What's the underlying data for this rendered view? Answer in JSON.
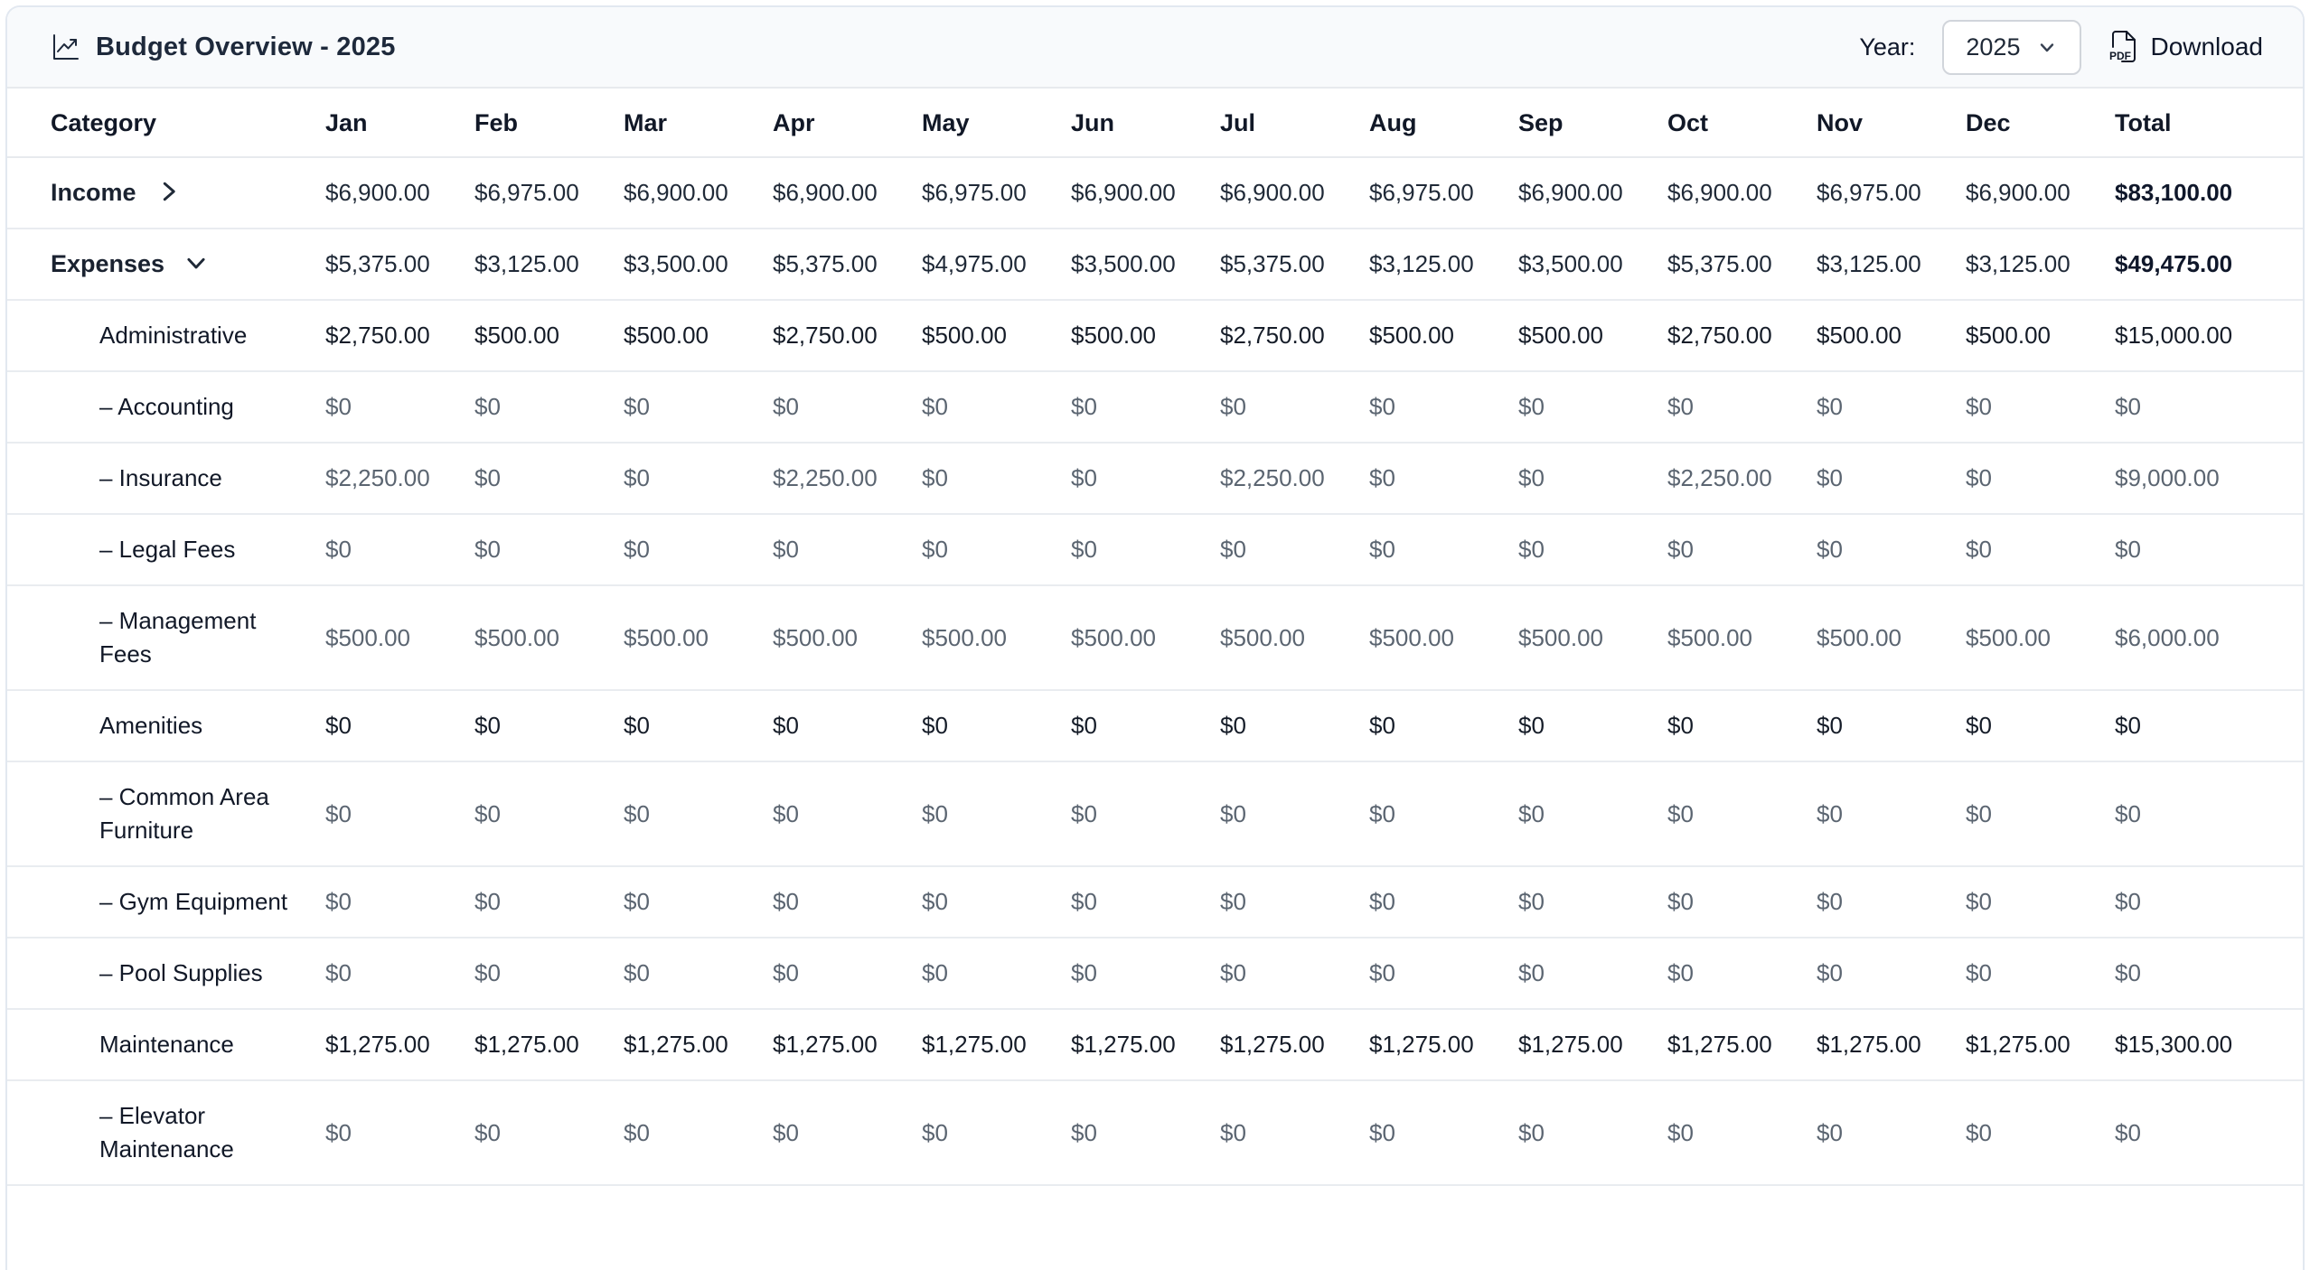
{
  "header": {
    "title": "Budget Overview - 2025",
    "title_icon": "chart-line-icon",
    "year_label": "Year:",
    "year_value": "2025",
    "year_chevron_icon": "chevron-down-icon",
    "download_label": "Download",
    "download_icon": "pdf-file-icon"
  },
  "colors": {
    "topbar_bg": "#f8fafc",
    "card_border": "#e2e8f0",
    "row_border": "#e9ecf0",
    "text_primary": "#111827",
    "text_muted": "#5b6571"
  },
  "table": {
    "columns": [
      "Category",
      "Jan",
      "Feb",
      "Mar",
      "Apr",
      "May",
      "Jun",
      "Jul",
      "Aug",
      "Sep",
      "Oct",
      "Nov",
      "Dec",
      "Total"
    ],
    "rows": [
      {
        "label": "Income",
        "level": 0,
        "chevron": "right",
        "values": [
          "$6,900.00",
          "$6,975.00",
          "$6,900.00",
          "$6,900.00",
          "$6,975.00",
          "$6,900.00",
          "$6,900.00",
          "$6,975.00",
          "$6,900.00",
          "$6,900.00",
          "$6,975.00",
          "$6,900.00",
          "$83,100.00"
        ]
      },
      {
        "label": "Expenses",
        "level": 0,
        "chevron": "down",
        "values": [
          "$5,375.00",
          "$3,125.00",
          "$3,500.00",
          "$5,375.00",
          "$4,975.00",
          "$3,500.00",
          "$5,375.00",
          "$3,125.00",
          "$3,500.00",
          "$5,375.00",
          "$3,125.00",
          "$3,125.00",
          "$49,475.00"
        ]
      },
      {
        "label": "Administrative",
        "level": 1,
        "chevron": null,
        "values": [
          "$2,750.00",
          "$500.00",
          "$500.00",
          "$2,750.00",
          "$500.00",
          "$500.00",
          "$2,750.00",
          "$500.00",
          "$500.00",
          "$2,750.00",
          "$500.00",
          "$500.00",
          "$15,000.00"
        ]
      },
      {
        "label": "– Accounting",
        "level": 2,
        "chevron": null,
        "values": [
          "$0",
          "$0",
          "$0",
          "$0",
          "$0",
          "$0",
          "$0",
          "$0",
          "$0",
          "$0",
          "$0",
          "$0",
          "$0"
        ]
      },
      {
        "label": "– Insurance",
        "level": 2,
        "chevron": null,
        "values": [
          "$2,250.00",
          "$0",
          "$0",
          "$2,250.00",
          "$0",
          "$0",
          "$2,250.00",
          "$0",
          "$0",
          "$2,250.00",
          "$0",
          "$0",
          "$9,000.00"
        ]
      },
      {
        "label": "– Legal Fees",
        "level": 2,
        "chevron": null,
        "values": [
          "$0",
          "$0",
          "$0",
          "$0",
          "$0",
          "$0",
          "$0",
          "$0",
          "$0",
          "$0",
          "$0",
          "$0",
          "$0"
        ]
      },
      {
        "label": "– Management Fees",
        "level": 2,
        "chevron": null,
        "values": [
          "$500.00",
          "$500.00",
          "$500.00",
          "$500.00",
          "$500.00",
          "$500.00",
          "$500.00",
          "$500.00",
          "$500.00",
          "$500.00",
          "$500.00",
          "$500.00",
          "$6,000.00"
        ]
      },
      {
        "label": "Amenities",
        "level": 1,
        "chevron": null,
        "values": [
          "$0",
          "$0",
          "$0",
          "$0",
          "$0",
          "$0",
          "$0",
          "$0",
          "$0",
          "$0",
          "$0",
          "$0",
          "$0"
        ]
      },
      {
        "label": "– Common Area Furniture",
        "level": 2,
        "chevron": null,
        "values": [
          "$0",
          "$0",
          "$0",
          "$0",
          "$0",
          "$0",
          "$0",
          "$0",
          "$0",
          "$0",
          "$0",
          "$0",
          "$0"
        ]
      },
      {
        "label": "– Gym Equipment",
        "level": 2,
        "chevron": null,
        "values": [
          "$0",
          "$0",
          "$0",
          "$0",
          "$0",
          "$0",
          "$0",
          "$0",
          "$0",
          "$0",
          "$0",
          "$0",
          "$0"
        ]
      },
      {
        "label": "– Pool Supplies",
        "level": 2,
        "chevron": null,
        "values": [
          "$0",
          "$0",
          "$0",
          "$0",
          "$0",
          "$0",
          "$0",
          "$0",
          "$0",
          "$0",
          "$0",
          "$0",
          "$0"
        ]
      },
      {
        "label": "Maintenance",
        "level": 1,
        "chevron": null,
        "values": [
          "$1,275.00",
          "$1,275.00",
          "$1,275.00",
          "$1,275.00",
          "$1,275.00",
          "$1,275.00",
          "$1,275.00",
          "$1,275.00",
          "$1,275.00",
          "$1,275.00",
          "$1,275.00",
          "$1,275.00",
          "$15,300.00"
        ]
      },
      {
        "label": "– Elevator Maintenance",
        "level": 2,
        "chevron": null,
        "values": [
          "$0",
          "$0",
          "$0",
          "$0",
          "$0",
          "$0",
          "$0",
          "$0",
          "$0",
          "$0",
          "$0",
          "$0",
          "$0"
        ]
      }
    ]
  }
}
